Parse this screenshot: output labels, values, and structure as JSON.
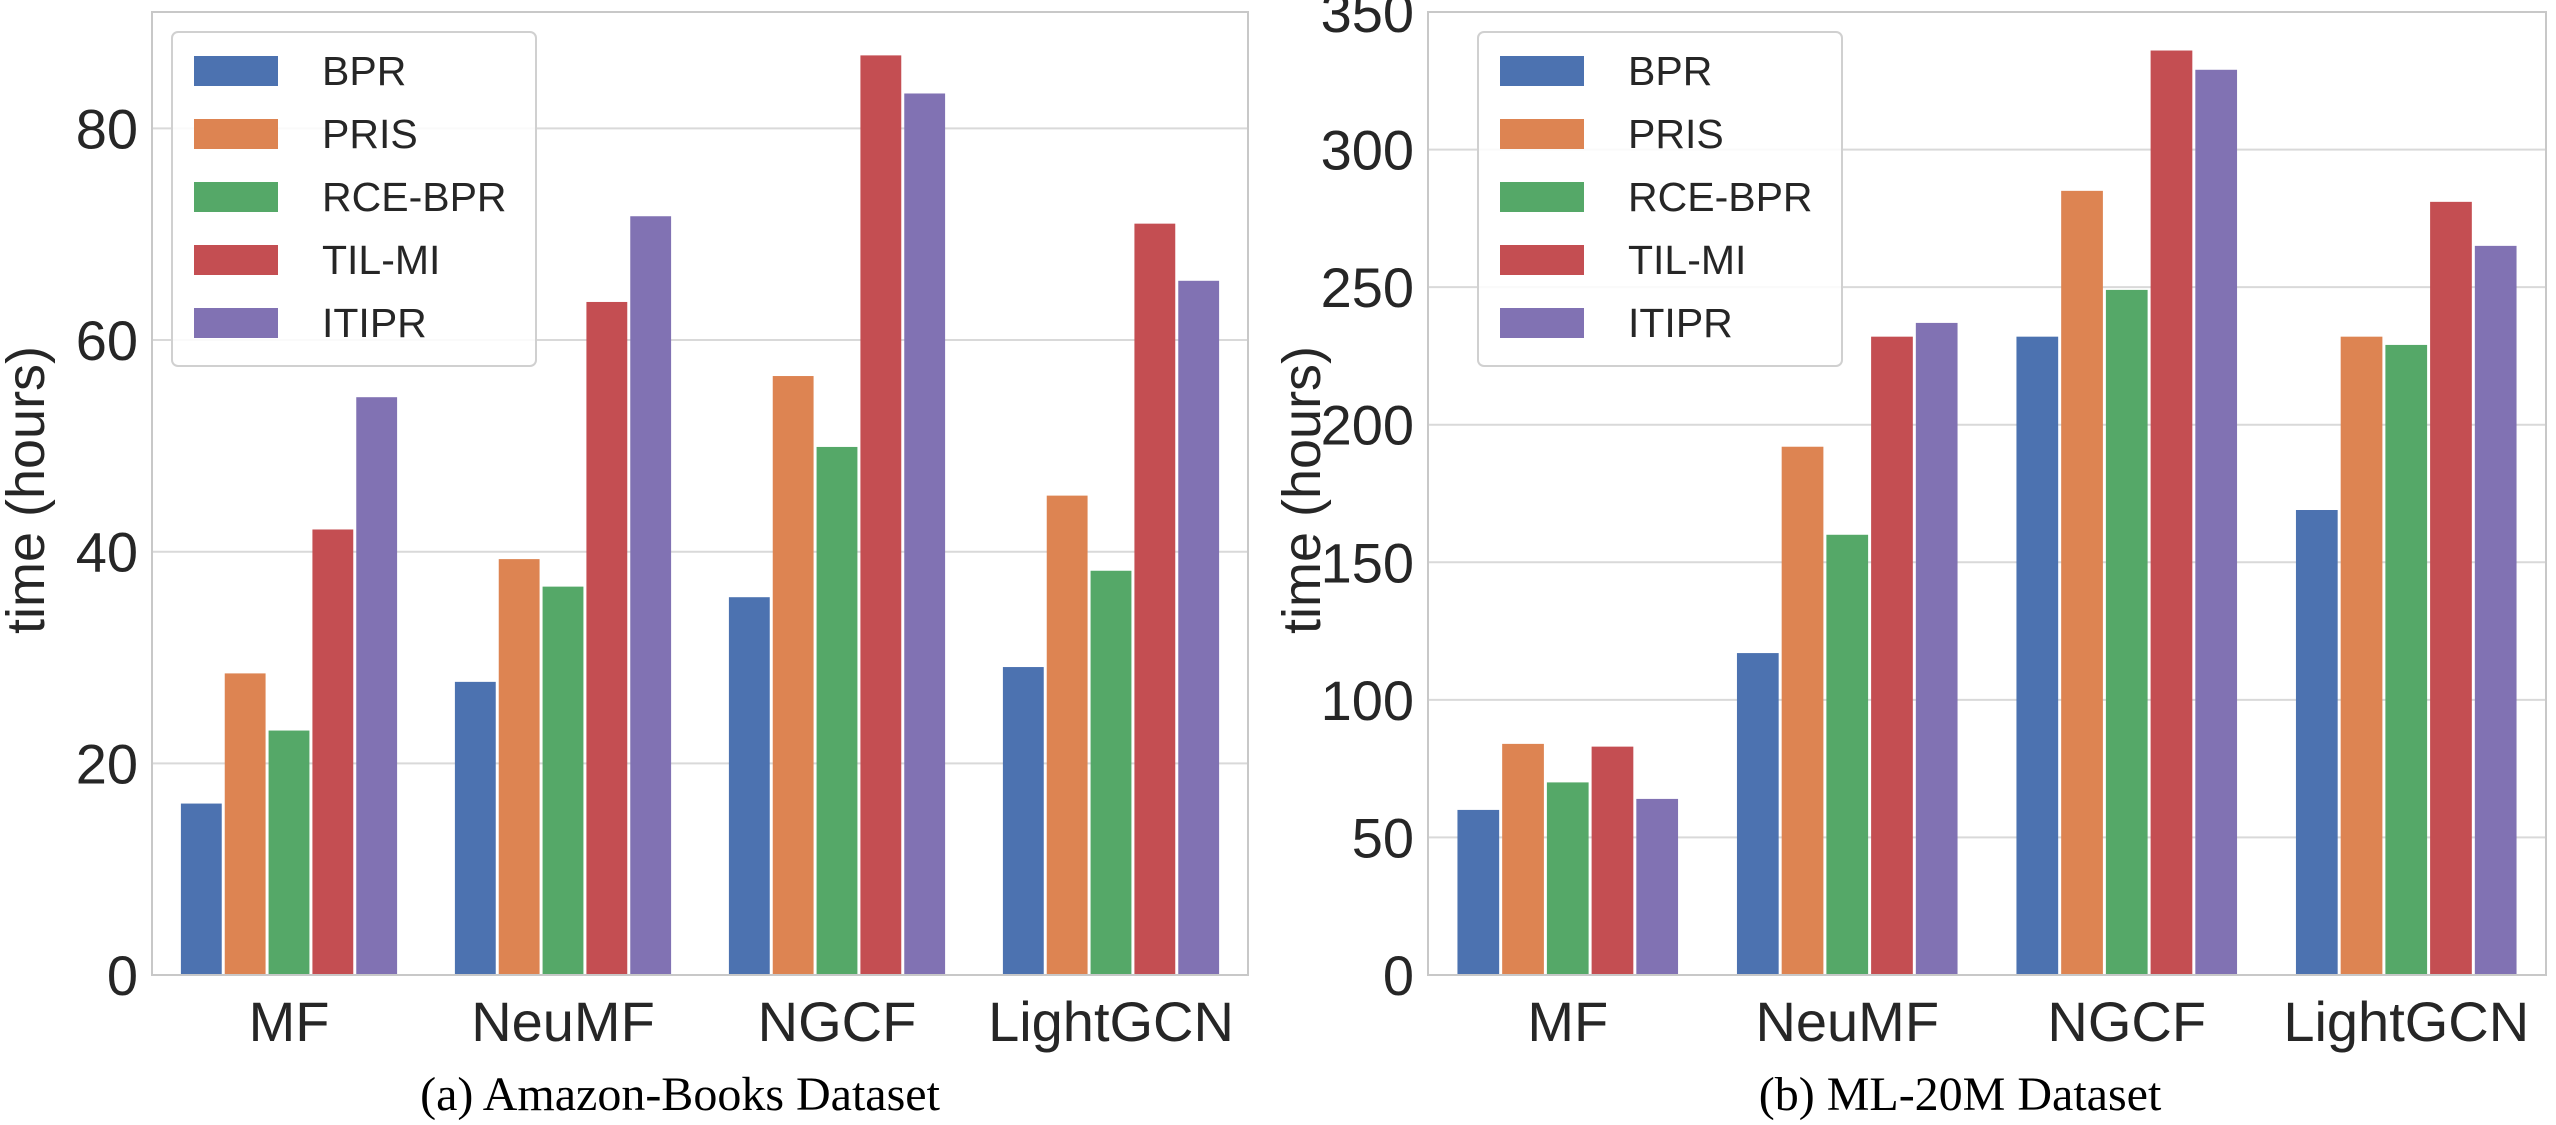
{
  "colors": {
    "series": [
      "#4c72b0",
      "#dd8452",
      "#55a868",
      "#c44e52",
      "#8172b3"
    ],
    "grid": "#d9d9d9",
    "frame": "#c8c8c8"
  },
  "chart_data": [
    {
      "type": "bar",
      "title": "",
      "caption": "(a) Amazon-Books Dataset",
      "xlabel": "",
      "ylabel": "time (hours)",
      "ylim": [
        0,
        91
      ],
      "yticks": [
        0,
        20,
        40,
        60,
        80
      ],
      "grid": true,
      "legend_position": "top-left",
      "categories": [
        "MF",
        "NeuMF",
        "NGCF",
        "LightGCN"
      ],
      "series": [
        {
          "name": "BPR",
          "values": [
            16.2,
            27.7,
            35.7,
            29.1
          ]
        },
        {
          "name": "PRIS",
          "values": [
            28.5,
            39.3,
            56.6,
            45.3
          ]
        },
        {
          "name": "RCE-BPR",
          "values": [
            23.1,
            36.7,
            49.9,
            38.2
          ]
        },
        {
          "name": "TIL-MI",
          "values": [
            42.1,
            63.6,
            86.9,
            71.0
          ]
        },
        {
          "name": "ITIPR",
          "values": [
            54.6,
            71.7,
            83.3,
            65.6
          ]
        }
      ]
    },
    {
      "type": "bar",
      "title": "",
      "caption": "(b) ML-20M Dataset",
      "xlabel": "",
      "ylabel": "time (hours)",
      "ylim": [
        0,
        350
      ],
      "yticks": [
        0,
        50,
        100,
        150,
        200,
        250,
        300,
        350
      ],
      "grid": true,
      "legend_position": "top-left",
      "categories": [
        "MF",
        "NeuMF",
        "NGCF",
        "LightGCN"
      ],
      "series": [
        {
          "name": "BPR",
          "values": [
            60,
            117,
            232,
            169
          ]
        },
        {
          "name": "PRIS",
          "values": [
            84,
            192,
            285,
            232
          ]
        },
        {
          "name": "RCE-BPR",
          "values": [
            70,
            160,
            249,
            229
          ]
        },
        {
          "name": "TIL-MI",
          "values": [
            83,
            232,
            336,
            281
          ]
        },
        {
          "name": "ITIPR",
          "values": [
            64,
            237,
            329,
            265
          ]
        }
      ]
    }
  ]
}
